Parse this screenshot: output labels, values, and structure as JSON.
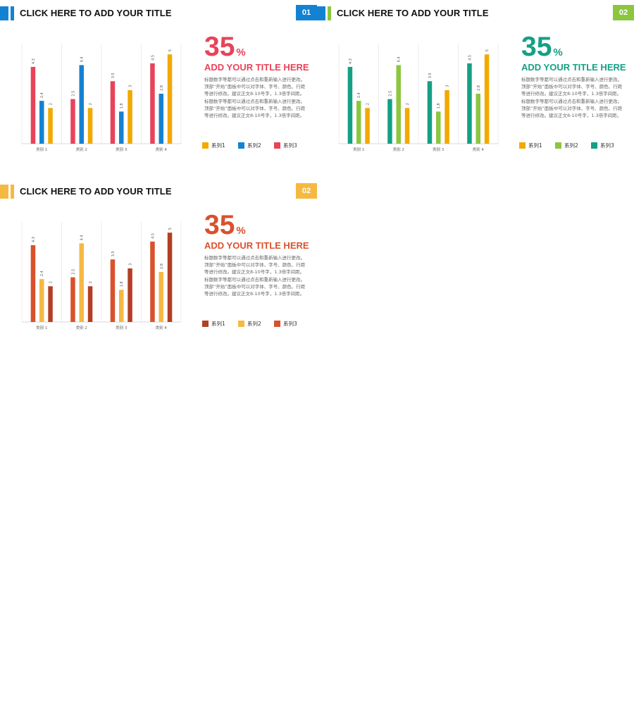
{
  "slides": [
    {
      "title": "CLICK HERE TO ADD YOUR TITLE",
      "badge": "01",
      "accent_colors": [
        "#1482d2",
        "#1482d2"
      ],
      "badge_color": "#1482d2",
      "stat": {
        "number": "35",
        "unit": "%"
      },
      "headline": "ADD YOUR TITLE HERE",
      "highlight_color": "#e8435a",
      "body": "标题数字等都可以通过点击和重新输入进行更改。顶部“开始”面板中可以对字体、字号、颜色、行距等进行修改。建议正文8-10号字，1.3倍字间距。标题数字等都可以通过点击和重新输入进行更改。顶部“开始”面板中可以对字体、字号、颜色、行距等进行修改。建议正文8-10号字，1.3倍字间距。",
      "chart_data": {
        "type": "bar",
        "categories": [
          "类别 1",
          "类别 2",
          "类别 3",
          "类别 4"
        ],
        "ylim": [
          0,
          5.6
        ],
        "grid": false,
        "legend_position": "right",
        "series": [
          {
            "name": "系列1",
            "color": "#f2a900",
            "values": [
              2,
              2,
              3,
              5
            ]
          },
          {
            "name": "系列2",
            "color": "#1482d2",
            "values": [
              2.4,
              4.4,
              1.8,
              2.8
            ]
          },
          {
            "name": "系列3",
            "color": "#e8435a",
            "values": [
              4.3,
              2.5,
              3.5,
              4.5
            ]
          }
        ],
        "plot_order": [
          2,
          1,
          0
        ],
        "legend_order": [
          0,
          1,
          2
        ]
      }
    },
    {
      "title": "CLICK HERE TO ADD YOUR TITLE",
      "badge": "02",
      "accent_colors": [
        "#1482d2",
        "#8cc63f"
      ],
      "badge_color": "#8cc63f",
      "stat": {
        "number": "35",
        "unit": "%"
      },
      "headline": "ADD YOUR TITLE HERE",
      "highlight_color": "#14a085",
      "body": "标题数字等都可以通过点击和重新输入进行更改。顶部“开始”面板中可以对字体、字号、颜色、行距等进行修改。建议正文8-10号字，1.3倍字间距。标题数字等都可以通过点击和重新输入进行更改。顶部“开始”面板中可以对字体、字号、颜色、行距等进行修改。建议正文8-10号字，1.3倍字间距。",
      "chart_data": {
        "type": "bar",
        "categories": [
          "类别 1",
          "类别 2",
          "类别 3",
          "类别 4"
        ],
        "ylim": [
          0,
          5.6
        ],
        "grid": false,
        "legend_position": "right",
        "series": [
          {
            "name": "系列1",
            "color": "#f2a900",
            "values": [
              2,
              2,
              3,
              5
            ]
          },
          {
            "name": "系列2",
            "color": "#8cc63f",
            "values": [
              2.4,
              4.4,
              1.8,
              2.8
            ]
          },
          {
            "name": "系列3",
            "color": "#14a085",
            "values": [
              4.3,
              2.5,
              3.5,
              4.5
            ]
          }
        ],
        "plot_order": [
          2,
          1,
          0
        ],
        "legend_order": [
          0,
          1,
          2
        ]
      }
    },
    {
      "title": "CLICK HERE TO ADD YOUR TITLE",
      "badge": "02",
      "accent_colors": [
        "#f5b942",
        "#f5b942"
      ],
      "badge_color": "#f5b942",
      "stat": {
        "number": "35",
        "unit": "%"
      },
      "headline": "ADD YOUR TITLE HERE",
      "highlight_color": "#d9512c",
      "body": "标题数字等都可以通过点击和重新输入进行更改。顶部“开始”面板中可以对字体、字号、颜色、行距等进行修改。建议正文8-10号字，1.3倍字间距。标题数字等都可以通过点击和重新输入进行更改。顶部“开始”面板中可以对字体、字号、颜色、行距等进行修改。建议正文8-10号字，1.3倍字间距。",
      "chart_data": {
        "type": "bar",
        "categories": [
          "类别 1",
          "类别 2",
          "类别 3",
          "类别 4"
        ],
        "ylim": [
          0,
          5.6
        ],
        "grid": false,
        "legend_position": "right",
        "series": [
          {
            "name": "系列1",
            "color": "#b23f24",
            "values": [
              2,
              2,
              3,
              5
            ]
          },
          {
            "name": "系列2",
            "color": "#f5b942",
            "values": [
              2.4,
              4.4,
              1.8,
              2.8
            ]
          },
          {
            "name": "系列3",
            "color": "#d9512c",
            "values": [
              4.3,
              2.5,
              3.5,
              4.5
            ]
          }
        ],
        "plot_order": [
          2,
          1,
          0
        ],
        "legend_order": [
          0,
          1,
          2
        ]
      }
    }
  ]
}
